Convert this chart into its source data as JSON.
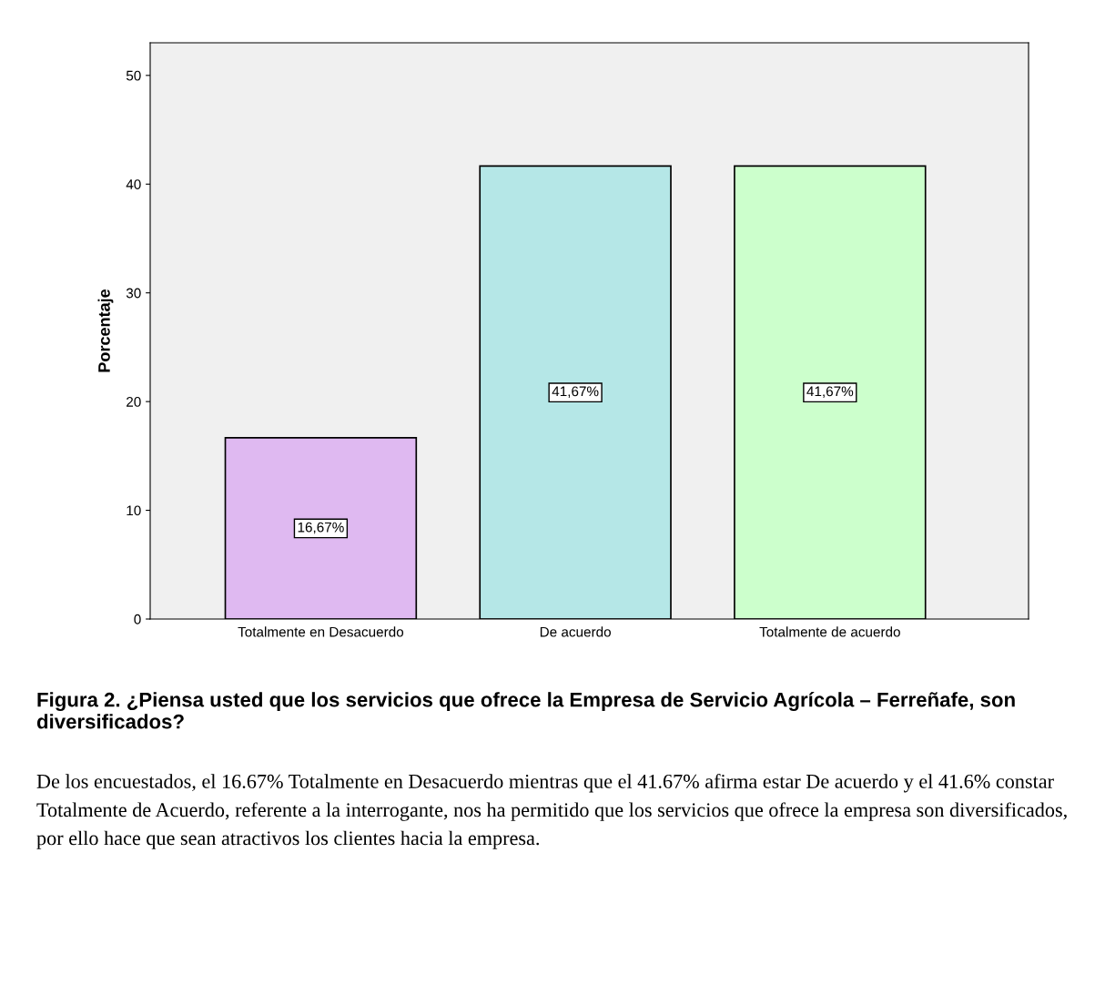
{
  "chart_data": {
    "type": "bar",
    "categories": [
      "Totalmente en Desacuerdo",
      "De acuerdo",
      "Totalmente de acuerdo"
    ],
    "values": [
      16.67,
      41.67,
      41.67
    ],
    "colors": [
      "#dfb9f1",
      "#b5e7e7",
      "#ccffcc"
    ],
    "value_labels": [
      "16,67%",
      "41,67%",
      "41,67%"
    ],
    "ylabel": "Porcentaje",
    "ylim": [
      0,
      53
    ],
    "yticks": [
      0,
      10,
      20,
      30,
      40,
      50
    ],
    "grid": false,
    "legend": false,
    "annotations": [
      "Figura 2. ¿Piensa usted que los servicios que ofrece la Empresa de Servicio Agrícola – Ferreñafe, son diversificados?",
      "De los encuestados, el 16.67% Totalmente en Desacuerdo mientras que el 41.67% afirma estar De acuerdo y el 41.6% constar Totalmente de Acuerdo, referente a la interrogante, nos ha permitido que los servicios que ofrece la empresa son diversificados, por ello hace que sean atractivos los clientes hacia la empresa."
    ]
  }
}
